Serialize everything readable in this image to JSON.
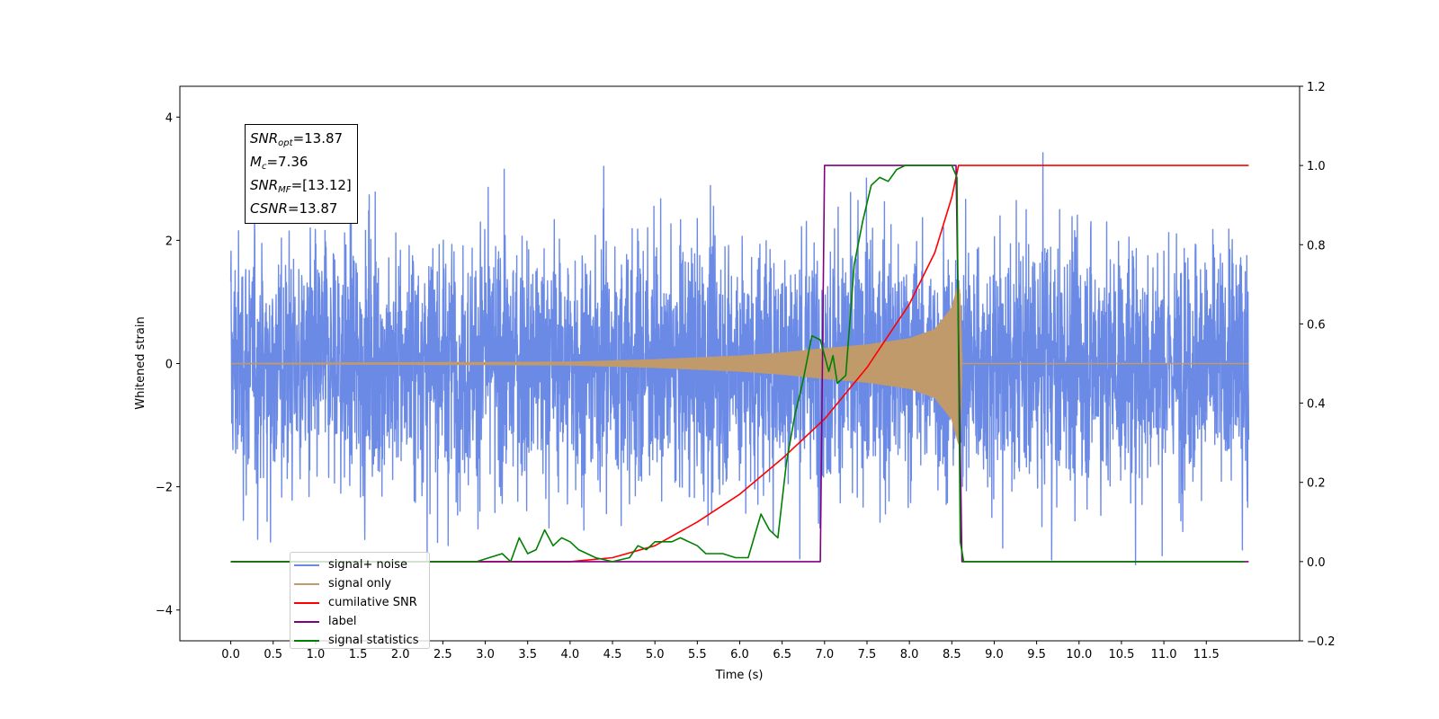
{
  "chart_data": {
    "type": "line",
    "xlabel": "Time (s)",
    "ylabel": "Whitened strain",
    "xlim": [
      -0.6,
      12.6
    ],
    "ylim": [
      -4.5,
      4.5
    ],
    "y2lim": [
      -0.2,
      1.2
    ],
    "x_ticks": [
      "0.0",
      "0.5",
      "1.0",
      "1.5",
      "2.0",
      "2.5",
      "3.0",
      "3.5",
      "4.0",
      "4.5",
      "5.0",
      "5.5",
      "6.0",
      "6.5",
      "7.0",
      "7.5",
      "8.0",
      "8.5",
      "9.0",
      "9.5",
      "10.0",
      "10.5",
      "11.0",
      "11.5"
    ],
    "y_ticks": [
      "−4",
      "−2",
      "0",
      "2",
      "4"
    ],
    "y2_ticks": [
      "−0.2",
      "0.0",
      "0.2",
      "0.4",
      "0.6",
      "0.8",
      "1.0",
      "1.2"
    ],
    "annotation": [
      {
        "sym": "SNR",
        "sub": "opt",
        "text": "=13.87"
      },
      {
        "sym": "M",
        "sub": "c",
        "text": "=7.36"
      },
      {
        "sym": "SNR",
        "sub": "MF",
        "text": "=[13.12]"
      },
      {
        "sym": "CSNR",
        "sub": "",
        "text": "=13.87"
      }
    ],
    "legend_position": "lower-left",
    "series": [
      {
        "name": "signal+ noise",
        "color": "#6b8ae6",
        "axis": "left",
        "kind": "noise",
        "x_range": [
          0.0,
          12.0
        ],
        "std": 1.0
      },
      {
        "name": "signal only",
        "color": "#c09a6b",
        "axis": "left",
        "kind": "chirp",
        "x_range": [
          0.0,
          8.62
        ],
        "envelope": [
          [
            0.0,
            0.0
          ],
          [
            4.0,
            0.02
          ],
          [
            5.0,
            0.06
          ],
          [
            6.0,
            0.12
          ],
          [
            6.5,
            0.17
          ],
          [
            7.0,
            0.24
          ],
          [
            7.5,
            0.3
          ],
          [
            8.0,
            0.4
          ],
          [
            8.3,
            0.55
          ],
          [
            8.5,
            0.9
          ],
          [
            8.58,
            1.3
          ],
          [
            8.6,
            1.1
          ],
          [
            8.62,
            0.0
          ]
        ]
      },
      {
        "name": "cumilative SNR",
        "color": "#ff0000",
        "axis": "right",
        "points": [
          [
            0.0,
            0.0
          ],
          [
            4.0,
            0.0
          ],
          [
            4.5,
            0.01
          ],
          [
            5.0,
            0.04
          ],
          [
            5.5,
            0.1
          ],
          [
            6.0,
            0.17
          ],
          [
            6.5,
            0.26
          ],
          [
            7.0,
            0.36
          ],
          [
            7.5,
            0.49
          ],
          [
            8.0,
            0.65
          ],
          [
            8.3,
            0.78
          ],
          [
            8.5,
            0.92
          ],
          [
            8.58,
            1.0
          ],
          [
            8.62,
            1.0
          ],
          [
            12.0,
            1.0
          ]
        ]
      },
      {
        "name": "label",
        "color": "#800080",
        "axis": "right",
        "points": [
          [
            0.0,
            0.0
          ],
          [
            6.95,
            0.0
          ],
          [
            7.0,
            1.0
          ],
          [
            8.55,
            1.0
          ],
          [
            8.62,
            0.0
          ],
          [
            12.0,
            0.0
          ]
        ]
      },
      {
        "name": "signal statistics",
        "color": "#008000",
        "axis": "right",
        "points": [
          [
            0.0,
            0.0
          ],
          [
            2.9,
            0.0
          ],
          [
            3.2,
            0.02
          ],
          [
            3.3,
            0.0
          ],
          [
            3.4,
            0.06
          ],
          [
            3.5,
            0.02
          ],
          [
            3.6,
            0.03
          ],
          [
            3.7,
            0.08
          ],
          [
            3.8,
            0.04
          ],
          [
            3.9,
            0.06
          ],
          [
            4.0,
            0.05
          ],
          [
            4.1,
            0.03
          ],
          [
            4.2,
            0.02
          ],
          [
            4.3,
            0.01
          ],
          [
            4.5,
            0.0
          ],
          [
            4.7,
            0.01
          ],
          [
            4.8,
            0.04
          ],
          [
            4.9,
            0.03
          ],
          [
            5.0,
            0.05
          ],
          [
            5.2,
            0.05
          ],
          [
            5.3,
            0.06
          ],
          [
            5.5,
            0.04
          ],
          [
            5.6,
            0.02
          ],
          [
            5.8,
            0.02
          ],
          [
            5.95,
            0.01
          ],
          [
            6.1,
            0.01
          ],
          [
            6.25,
            0.12
          ],
          [
            6.35,
            0.08
          ],
          [
            6.45,
            0.06
          ],
          [
            6.55,
            0.25
          ],
          [
            6.65,
            0.37
          ],
          [
            6.75,
            0.46
          ],
          [
            6.85,
            0.57
          ],
          [
            6.95,
            0.56
          ],
          [
            7.05,
            0.48
          ],
          [
            7.1,
            0.52
          ],
          [
            7.15,
            0.45
          ],
          [
            7.25,
            0.47
          ],
          [
            7.35,
            0.75
          ],
          [
            7.45,
            0.86
          ],
          [
            7.55,
            0.95
          ],
          [
            7.65,
            0.97
          ],
          [
            7.75,
            0.96
          ],
          [
            7.85,
            0.99
          ],
          [
            7.95,
            1.0
          ],
          [
            8.4,
            1.0
          ],
          [
            8.5,
            1.0
          ],
          [
            8.56,
            0.97
          ],
          [
            8.6,
            0.05
          ],
          [
            8.64,
            0.0
          ],
          [
            11.95,
            0.0
          ]
        ]
      }
    ]
  }
}
